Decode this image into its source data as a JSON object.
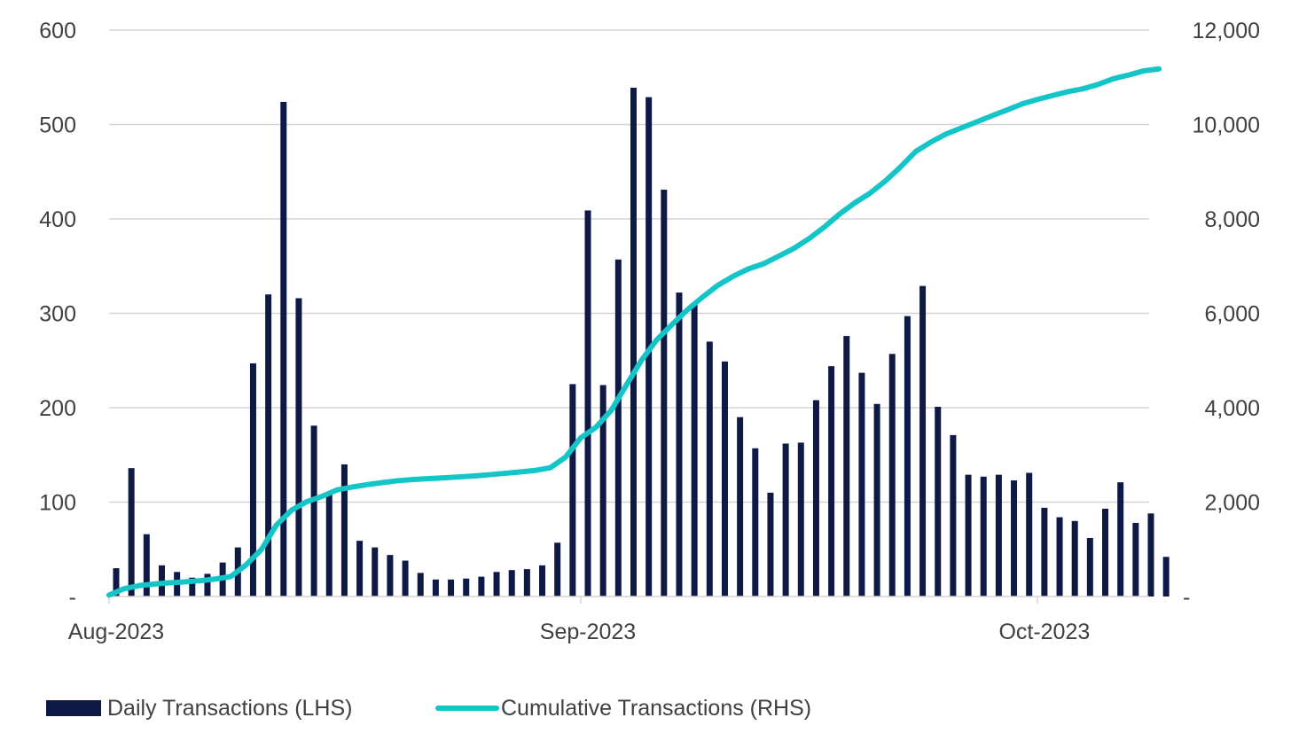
{
  "chart_data": {
    "type": "bar+line",
    "title": "",
    "left_axis": {
      "range": [
        0,
        600
      ],
      "ticks": [
        0,
        100,
        200,
        300,
        400,
        500,
        600
      ],
      "tick_labels": [
        "-",
        "100",
        "200",
        "300",
        "400",
        "500",
        "600"
      ]
    },
    "right_axis": {
      "range": [
        0,
        12000
      ],
      "ticks": [
        0,
        2000,
        4000,
        6000,
        8000,
        10000,
        12000
      ],
      "tick_labels": [
        "-",
        "2,000",
        "4,000",
        "6,000",
        "8,000",
        "10,000",
        "12,000"
      ]
    },
    "x_axis": {
      "start_day": 0,
      "end_day": 68,
      "ticks": [
        {
          "day": 0,
          "label": "Aug-2023"
        },
        {
          "day": 31,
          "label": "Sep-2023"
        },
        {
          "day": 61,
          "label": "Oct-2023"
        }
      ]
    },
    "grid": true,
    "legend_position": "bottom-left",
    "series": [
      {
        "name": "Daily Transactions (LHS)",
        "type": "bar",
        "axis": "left",
        "color": "#0e1a45",
        "values": [
          30,
          136,
          66,
          33,
          26,
          20,
          24,
          36,
          52,
          247,
          320,
          524,
          316,
          181,
          110,
          140,
          59,
          52,
          44,
          38,
          25,
          18,
          18,
          19,
          21,
          26,
          28,
          29,
          33,
          57,
          225,
          409,
          224,
          357,
          539,
          529,
          431,
          322,
          309,
          270,
          249,
          190,
          157,
          110,
          162,
          163,
          208,
          244,
          276,
          237,
          204,
          257,
          297,
          329,
          201,
          171,
          129,
          127,
          129,
          123,
          131,
          94,
          84,
          80,
          62,
          93,
          121,
          78,
          88,
          42
        ]
      },
      {
        "name": "Cumulative Transactions (RHS)",
        "type": "line",
        "axis": "right",
        "color": "#14c5c8",
        "values": [
          30,
          166,
          232,
          265,
          291,
          311,
          335,
          371,
          423,
          670,
          990,
          1514,
          1830,
          2011,
          2121,
          2261,
          2320,
          2372,
          2416,
          2454,
          2479,
          2497,
          2515,
          2534,
          2555,
          2581,
          2609,
          2638,
          2671,
          2728,
          2953,
          3362,
          3586,
          3943,
          4482,
          5011,
          5442,
          5764,
          6073,
          6343,
          6592,
          6782,
          6939,
          7049,
          7211,
          7374,
          7582,
          7826,
          8102,
          8339,
          8543,
          8800,
          9097,
          9426,
          9627,
          9798,
          9927,
          10054,
          10183,
          10306,
          10437,
          10531,
          10615,
          10695,
          10757,
          10850,
          10971,
          11049,
          11137,
          11179
        ]
      }
    ]
  }
}
